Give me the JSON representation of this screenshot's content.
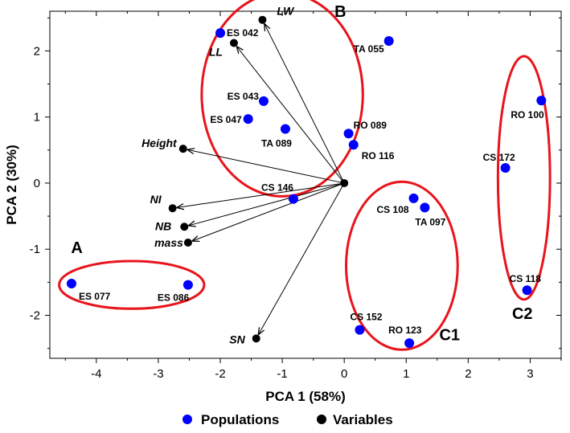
{
  "chart_data": {
    "type": "scatter",
    "xlabel": "PCA 1 (58%)",
    "ylabel": "PCA 2 (30%)",
    "xlim": [
      -4.75,
      3.5
    ],
    "ylim": [
      -2.65,
      2.6
    ],
    "xticks": [
      -4,
      -3,
      -2,
      -1,
      0,
      1,
      2,
      3
    ],
    "yticks": [
      -2,
      -1,
      0,
      1,
      2
    ],
    "grid": false,
    "legend_position": "bottom",
    "colors": {
      "populations": "#0000ff",
      "variables": "#000000",
      "groups": "#e8141b"
    },
    "series": [
      {
        "name": "Populations",
        "points": [
          {
            "label": "ES 042",
            "x": -2.0,
            "y": 2.27
          },
          {
            "label": "TA 055",
            "x": 0.72,
            "y": 2.15
          },
          {
            "label": "ES 043",
            "x": -1.3,
            "y": 1.24
          },
          {
            "label": "ES 047",
            "x": -1.55,
            "y": 0.97
          },
          {
            "label": "TA 089",
            "x": -0.95,
            "y": 0.82
          },
          {
            "label": "RO 089",
            "x": 0.07,
            "y": 0.75
          },
          {
            "label": "RO 116",
            "x": 0.15,
            "y": 0.58
          },
          {
            "label": "CS 146",
            "x": -0.82,
            "y": -0.24
          },
          {
            "label": "CS 108",
            "x": 1.12,
            "y": -0.23
          },
          {
            "label": "TA 097",
            "x": 1.3,
            "y": -0.37
          },
          {
            "label": "RO 100",
            "x": 3.18,
            "y": 1.25
          },
          {
            "label": "CS 172",
            "x": 2.6,
            "y": 0.23
          },
          {
            "label": "CS 118",
            "x": 2.95,
            "y": -1.62
          },
          {
            "label": "CS 152",
            "x": 0.25,
            "y": -2.22
          },
          {
            "label": "RO 123",
            "x": 1.05,
            "y": -2.42
          },
          {
            "label": "ES 077",
            "x": -4.4,
            "y": -1.52
          },
          {
            "label": "ES 086",
            "x": -2.52,
            "y": -1.54
          }
        ]
      },
      {
        "name": "Variables",
        "points": [
          {
            "label": "LW",
            "x": -1.32,
            "y": 2.47
          },
          {
            "label": "LL",
            "x": -1.78,
            "y": 2.12
          },
          {
            "label": "Height",
            "x": -2.6,
            "y": 0.52
          },
          {
            "label": "NI",
            "x": -2.77,
            "y": -0.38
          },
          {
            "label": "NB",
            "x": -2.58,
            "y": -0.66
          },
          {
            "label": "mass",
            "x": -2.52,
            "y": -0.9
          },
          {
            "label": "SN",
            "x": -1.42,
            "y": -2.35
          }
        ]
      }
    ],
    "groups": [
      {
        "label": "A",
        "cx": -3.43,
        "cy": -1.54,
        "rx": 1.17,
        "ry": 0.36
      },
      {
        "label": "B",
        "cx": -1.0,
        "cy": 1.34,
        "rx": 1.3,
        "ry": 1.54
      },
      {
        "label": "C1",
        "cx": 0.93,
        "cy": -1.25,
        "rx": 0.9,
        "ry": 1.27
      },
      {
        "label": "C2",
        "cx": 2.9,
        "cy": 0.08,
        "rx": 0.42,
        "ry": 1.84
      }
    ]
  }
}
